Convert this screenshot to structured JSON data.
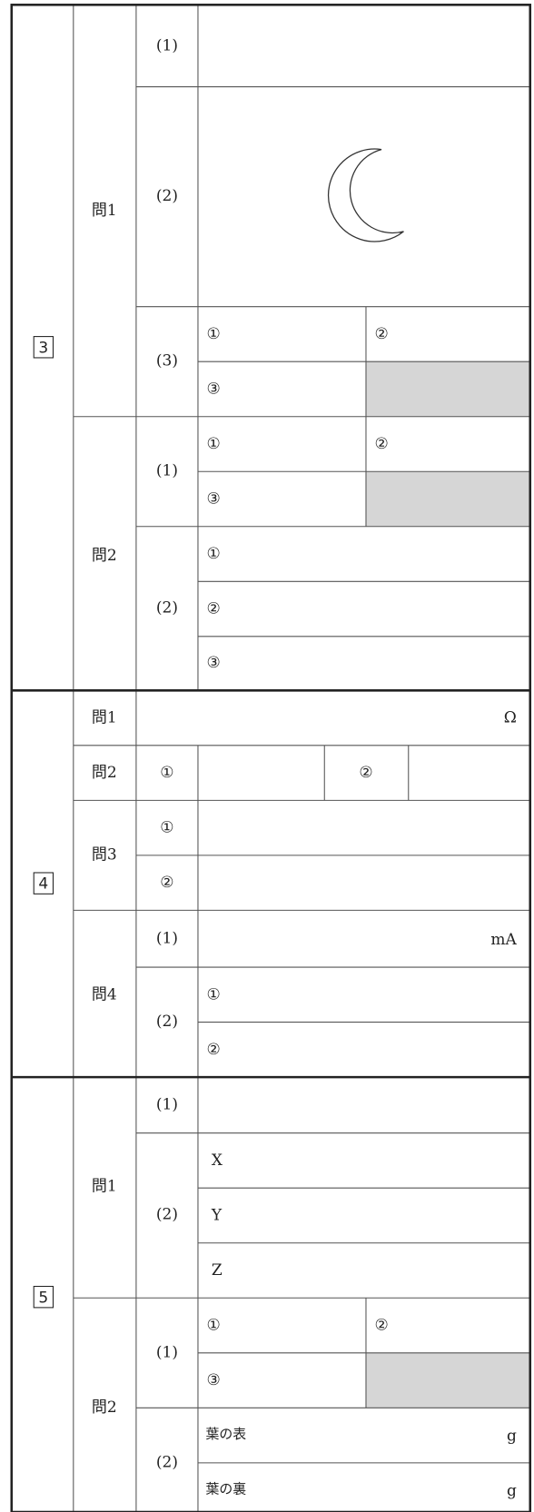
{
  "section3": {
    "number": "3",
    "q1": {
      "label": "問1",
      "p1": "(1)",
      "p2": "(2)",
      "p3": {
        "label": "(3)",
        "items": [
          "①",
          "②",
          "③"
        ]
      }
    },
    "q2": {
      "label": "問2",
      "p1": {
        "label": "(1)",
        "items": [
          "①",
          "②",
          "③"
        ]
      },
      "p2": {
        "label": "(2)",
        "items": [
          "①",
          "②",
          "③"
        ]
      }
    }
  },
  "section4": {
    "number": "4",
    "q1": {
      "label": "問1",
      "unit": "Ω"
    },
    "q2": {
      "label": "問2",
      "items": [
        "①",
        "②"
      ]
    },
    "q3": {
      "label": "問3",
      "items": [
        "①",
        "②"
      ]
    },
    "q4": {
      "label": "問4",
      "p1": {
        "label": "(1)",
        "unit": "mA"
      },
      "p2": {
        "label": "(2)",
        "items": [
          "①",
          "②"
        ]
      }
    }
  },
  "section5": {
    "number": "5",
    "q1": {
      "label": "問1",
      "p1": "(1)",
      "p2": {
        "label": "(2)",
        "items": [
          "X",
          "Y",
          "Z"
        ]
      }
    },
    "q2": {
      "label": "問2",
      "p1": {
        "label": "(1)",
        "items": [
          "①",
          "②",
          "③"
        ]
      },
      "p2": {
        "label": "(2)",
        "rows": [
          {
            "label": "葉の表",
            "unit": "g"
          },
          {
            "label": "葉の裏",
            "unit": "g"
          }
        ]
      }
    }
  }
}
